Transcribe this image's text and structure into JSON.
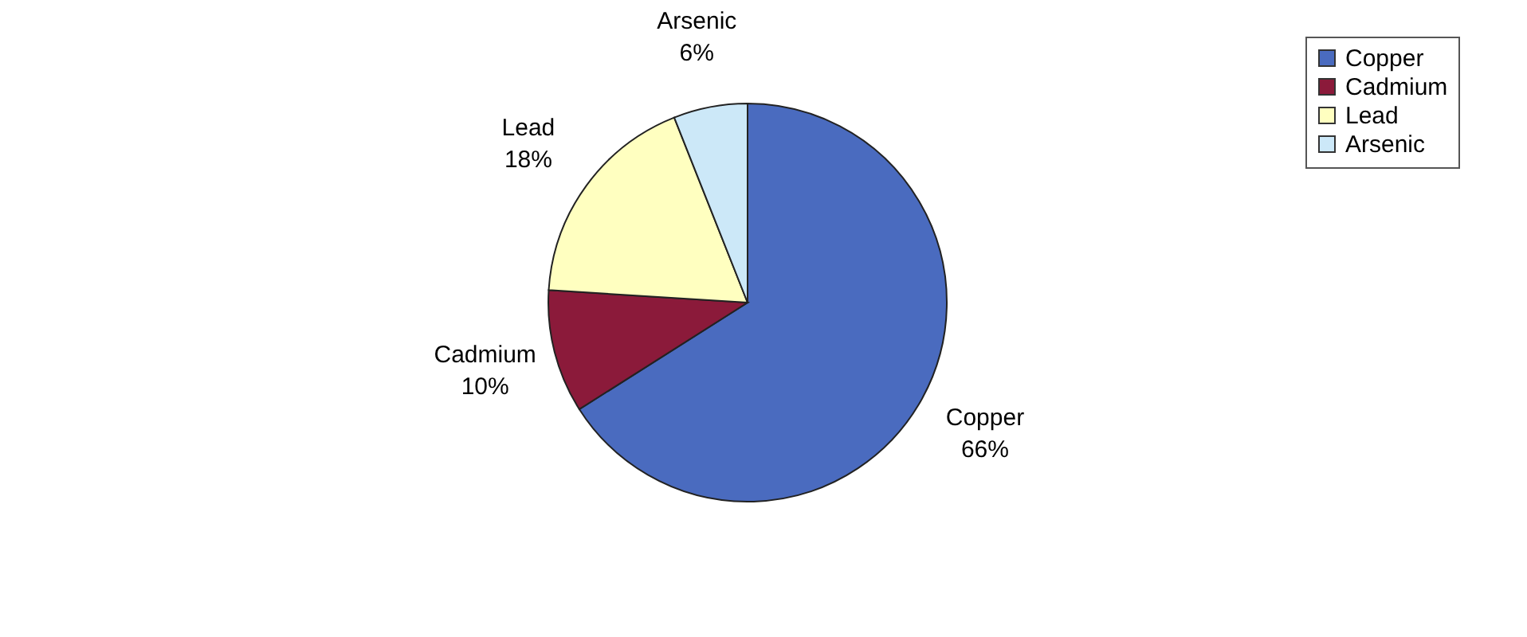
{
  "chart_data": {
    "type": "pie",
    "categories": [
      "Copper",
      "Cadmium",
      "Lead",
      "Arsenic"
    ],
    "values": [
      66,
      10,
      18,
      6
    ],
    "colors": [
      "#4a6bbf",
      "#8b1a3a",
      "#ffffc0",
      "#cce8f8"
    ],
    "value_labels": [
      "66%",
      "10%",
      "18%",
      "6%"
    ],
    "legend": "top right"
  }
}
